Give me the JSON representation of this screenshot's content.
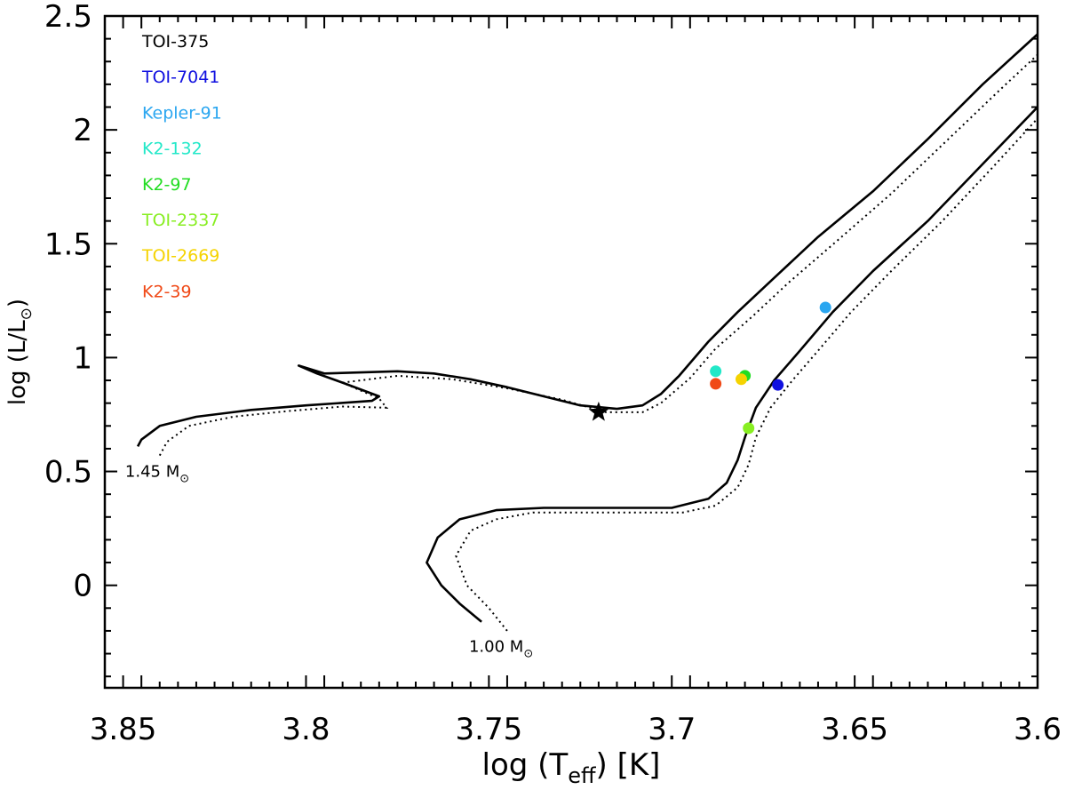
{
  "chart_data": {
    "type": "scatter",
    "xlabel": {
      "prefix": "log (T",
      "sub": "eff",
      "suffix": ") [K]"
    },
    "ylabel": {
      "prefix": "log (L/L",
      "sub": "⊙",
      "suffix": ")"
    },
    "xlim": [
      3.855,
      3.6
    ],
    "ylim": [
      -0.45,
      2.5
    ],
    "x_ticks": [
      3.85,
      3.8,
      3.75,
      3.7,
      3.65,
      3.6
    ],
    "x_tick_labels": [
      "3.85",
      "3.8",
      "3.75",
      "3.7",
      "3.65",
      "3.6"
    ],
    "y_ticks": [
      0,
      0.5,
      1,
      1.5,
      2,
      2.5
    ],
    "y_tick_labels": [
      "0",
      "0.5",
      "1",
      "1.5",
      "2",
      "2.5"
    ],
    "legend_position": "top-left",
    "stars": [
      {
        "name": "TOI-375",
        "color": "#000000",
        "points": [
          {
            "x": 3.72,
            "y": 0.76,
            "marker": "star"
          }
        ]
      },
      {
        "name": "TOI-7041",
        "color": "#1010e0",
        "points": [
          {
            "x": 3.671,
            "y": 0.88
          }
        ]
      },
      {
        "name": "Kepler-91",
        "color": "#2aa6f0",
        "points": [
          {
            "x": 3.658,
            "y": 1.22
          }
        ]
      },
      {
        "name": "K2-132",
        "color": "#22e8c8",
        "points": [
          {
            "x": 3.688,
            "y": 0.94
          }
        ]
      },
      {
        "name": "K2-97",
        "color": "#22dd22",
        "points": [
          {
            "x": 3.68,
            "y": 0.92
          }
        ]
      },
      {
        "name": "TOI-2337",
        "color": "#88ee22",
        "points": [
          {
            "x": 3.679,
            "y": 0.69
          }
        ]
      },
      {
        "name": "TOI-2669",
        "color": "#f5d300",
        "points": [
          {
            "x": 3.681,
            "y": 0.905
          }
        ]
      },
      {
        "name": "K2-39",
        "color": "#f04a18",
        "points": [
          {
            "x": 3.688,
            "y": 0.885
          }
        ]
      }
    ],
    "tracks": [
      {
        "mass_value": "1.45 M",
        "mass_sub": "⊙",
        "solid": [
          [
            3.846,
            0.61
          ],
          [
            3.845,
            0.64
          ],
          [
            3.84,
            0.7
          ],
          [
            3.83,
            0.74
          ],
          [
            3.815,
            0.77
          ],
          [
            3.8,
            0.79
          ],
          [
            3.782,
            0.81
          ],
          [
            3.78,
            0.83
          ],
          [
            3.79,
            0.89
          ],
          [
            3.797,
            0.93
          ],
          [
            3.802,
            0.965
          ],
          [
            3.795,
            0.93
          ],
          [
            3.785,
            0.935
          ],
          [
            3.775,
            0.94
          ],
          [
            3.765,
            0.93
          ],
          [
            3.755,
            0.905
          ],
          [
            3.745,
            0.87
          ],
          [
            3.735,
            0.83
          ],
          [
            3.725,
            0.79
          ],
          [
            3.715,
            0.775
          ],
          [
            3.708,
            0.79
          ],
          [
            3.703,
            0.84
          ],
          [
            3.698,
            0.92
          ],
          [
            3.69,
            1.07
          ],
          [
            3.682,
            1.2
          ],
          [
            3.672,
            1.35
          ],
          [
            3.66,
            1.53
          ],
          [
            3.645,
            1.73
          ],
          [
            3.63,
            1.96
          ],
          [
            3.615,
            2.2
          ],
          [
            3.6,
            2.42
          ]
        ],
        "dotted": [
          [
            3.84,
            0.57
          ],
          [
            3.838,
            0.63
          ],
          [
            3.832,
            0.7
          ],
          [
            3.82,
            0.74
          ],
          [
            3.805,
            0.765
          ],
          [
            3.79,
            0.785
          ],
          [
            3.778,
            0.78
          ],
          [
            3.78,
            0.82
          ],
          [
            3.79,
            0.89
          ],
          [
            3.775,
            0.92
          ],
          [
            3.76,
            0.905
          ],
          [
            3.745,
            0.865
          ],
          [
            3.73,
            0.815
          ],
          [
            3.718,
            0.76
          ],
          [
            3.708,
            0.76
          ],
          [
            3.703,
            0.8
          ],
          [
            3.695,
            0.91
          ],
          [
            3.688,
            1.04
          ],
          [
            3.678,
            1.18
          ],
          [
            3.668,
            1.33
          ],
          [
            3.655,
            1.51
          ],
          [
            3.64,
            1.72
          ],
          [
            3.625,
            1.95
          ],
          [
            3.61,
            2.18
          ],
          [
            3.6,
            2.33
          ]
        ]
      },
      {
        "mass_value": "1.00 M",
        "mass_sub": "⊙",
        "solid": [
          [
            3.752,
            -0.16
          ],
          [
            3.758,
            -0.08
          ],
          [
            3.763,
            0.0
          ],
          [
            3.767,
            0.1
          ],
          [
            3.764,
            0.21
          ],
          [
            3.758,
            0.29
          ],
          [
            3.748,
            0.33
          ],
          [
            3.735,
            0.34
          ],
          [
            3.72,
            0.34
          ],
          [
            3.71,
            0.34
          ],
          [
            3.7,
            0.34
          ],
          [
            3.69,
            0.38
          ],
          [
            3.685,
            0.45
          ],
          [
            3.682,
            0.55
          ],
          [
            3.68,
            0.65
          ],
          [
            3.677,
            0.78
          ],
          [
            3.672,
            0.9
          ],
          [
            3.665,
            1.03
          ],
          [
            3.656,
            1.2
          ],
          [
            3.645,
            1.38
          ],
          [
            3.63,
            1.6
          ],
          [
            3.615,
            1.85
          ],
          [
            3.6,
            2.1
          ]
        ],
        "dotted": [
          [
            3.745,
            -0.2
          ],
          [
            3.75,
            -0.1
          ],
          [
            3.756,
            0.0
          ],
          [
            3.759,
            0.13
          ],
          [
            3.755,
            0.24
          ],
          [
            3.748,
            0.29
          ],
          [
            3.738,
            0.32
          ],
          [
            3.725,
            0.32
          ],
          [
            3.71,
            0.32
          ],
          [
            3.697,
            0.32
          ],
          [
            3.688,
            0.35
          ],
          [
            3.682,
            0.43
          ],
          [
            3.679,
            0.53
          ],
          [
            3.677,
            0.65
          ],
          [
            3.673,
            0.78
          ],
          [
            3.667,
            0.9
          ],
          [
            3.66,
            1.03
          ],
          [
            3.651,
            1.2
          ],
          [
            3.64,
            1.38
          ],
          [
            3.626,
            1.6
          ],
          [
            3.612,
            1.84
          ],
          [
            3.6,
            2.05
          ]
        ]
      }
    ]
  }
}
